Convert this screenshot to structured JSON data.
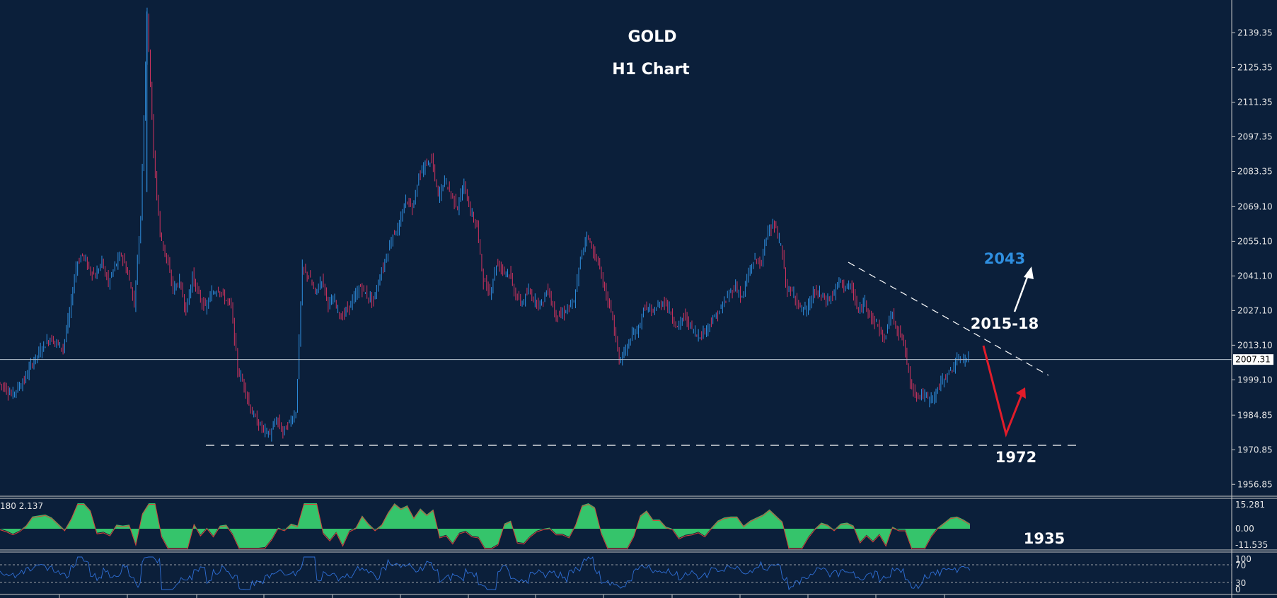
{
  "chart_data": {
    "type": "line",
    "title": "GOLD",
    "subtitle": "H1 Chart",
    "price_axis": {
      "ticks": [
        "2139.35",
        "2125.35",
        "2111.35",
        "2097.35",
        "2083.35",
        "2069.10",
        "2055.10",
        "2041.10",
        "2027.10",
        "2013.10",
        "1999.10",
        "1984.85",
        "1970.85",
        "1956.85"
      ],
      "ylim": [
        1950,
        2152
      ],
      "current_price": "2007.31"
    },
    "series": [
      {
        "values": [
          1998,
          1996,
          1993,
          1996,
          1999,
          2005,
          2009,
          2013,
          2016,
          2014,
          2012,
          2026,
          2045,
          2050,
          2044,
          2041,
          2047,
          2038,
          2045,
          2050,
          2042,
          2030,
          2065,
          2148,
          2090,
          2058,
          2048,
          2036,
          2039,
          2027,
          2041,
          2033,
          2028,
          2034,
          2036,
          2032,
          2029,
          2003,
          1997,
          1987,
          1982,
          1979,
          1977,
          1983,
          1978,
          1982,
          1986,
          2044,
          2041,
          2034,
          2040,
          2030,
          2031,
          2024,
          2028,
          2032,
          2037,
          2033,
          2031,
          2041,
          2049,
          2058,
          2061,
          2072,
          2069,
          2081,
          2086,
          2088,
          2073,
          2080,
          2074,
          2069,
          2078,
          2067,
          2061,
          2039,
          2034,
          2046,
          2044,
          2042,
          2033,
          2030,
          2035,
          2031,
          2030,
          2036,
          2026,
          2025,
          2028,
          2030,
          2048,
          2058,
          2051,
          2044,
          2033,
          2024,
          2007,
          2011,
          2017,
          2020,
          2029,
          2026,
          2029,
          2031,
          2026,
          2020,
          2025,
          2021,
          2017,
          2018,
          2022,
          2025,
          2029,
          2034,
          2037,
          2032,
          2042,
          2048,
          2046,
          2061,
          2061,
          2053,
          2035,
          2034,
          2028,
          2027,
          2034,
          2034,
          2031,
          2033,
          2039,
          2037,
          2036,
          2026,
          2031,
          2024,
          2021,
          2015,
          2026,
          2020,
          2014,
          1998,
          1993,
          1993,
          1991,
          1994,
          1999,
          2002,
          2006,
          2008,
          2007
        ],
        "color": "#c2377a"
      }
    ],
    "annotations": {
      "target_up": "2043",
      "resistance": "2015-18",
      "support": "1972",
      "lower_label": "1935"
    },
    "macd": {
      "header": "180 2.137",
      "ticks": [
        "15.281",
        "0.00",
        "-11.535"
      ],
      "fill_color": "#35c46b",
      "signal_color": "#d6453a"
    },
    "rsi": {
      "ticks": [
        "100",
        "70",
        "30",
        "0"
      ],
      "color": "#2f6fd6"
    },
    "colors": {
      "background": "#0b1f3a",
      "candle_up": "#2f8fe0",
      "candle_down": "#d1335f",
      "target_text": "#2f8fe0",
      "arrow_down": "#e11c2a"
    },
    "grid": false
  }
}
